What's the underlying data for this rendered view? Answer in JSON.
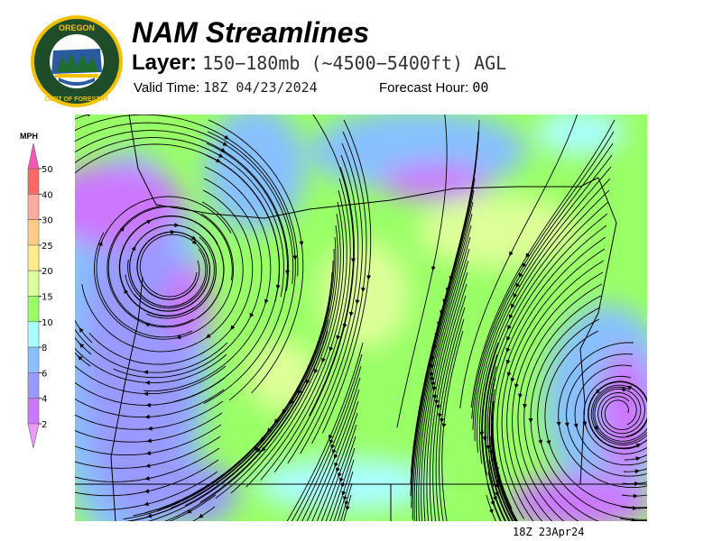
{
  "header": {
    "title": "NAM Streamlines",
    "layer_label": "Layer:",
    "layer_value": "150−180mb (~4500−5400ft) AGL",
    "valid_label": "Valid Time:",
    "valid_value": "18Z 04/23/2024",
    "forecast_label": "Forecast Hour:",
    "forecast_value": "00"
  },
  "logo": {
    "text_top": "OREGON",
    "text_bottom": "DEPARTMENT OF FORESTRY"
  },
  "legend": {
    "unit": "MPH",
    "ticks": [
      "50",
      "40",
      "30",
      "25",
      "20",
      "15",
      "10",
      "8",
      "6",
      "4",
      "2"
    ],
    "colors": {
      "above_50": "#ff55bb",
      "40-50": "#ff6666",
      "30-40": "#ffaaa0",
      "25-30": "#ffcc88",
      "20-25": "#ffee88",
      "15-20": "#ddff99",
      "10-15": "#99ff66",
      "8-10": "#aaffff",
      "6-8": "#88c0ff",
      "4-6": "#9999ff",
      "2-4": "#cc77ff",
      "below_2": "#ee99ff"
    }
  },
  "footer": {
    "timestamp": "18Z 23Apr24"
  }
}
